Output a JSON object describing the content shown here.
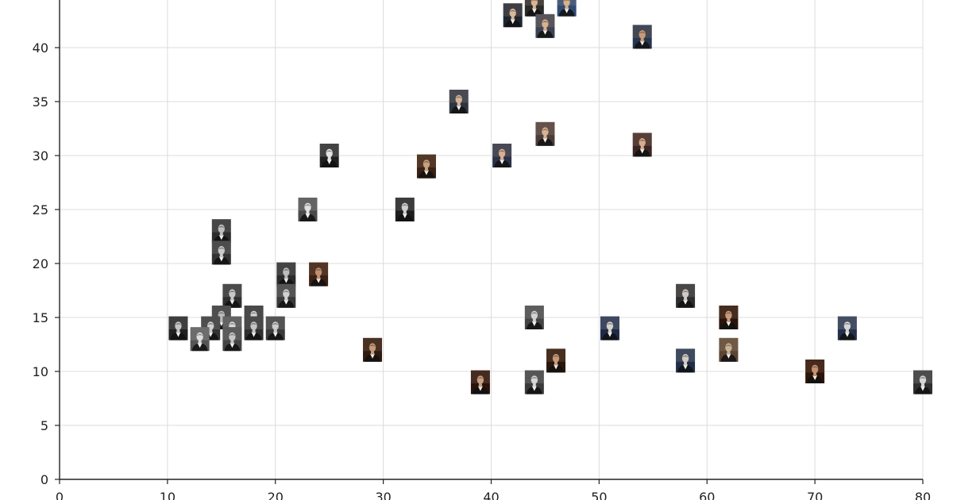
{
  "chart_data": {
    "type": "scatter",
    "title": "",
    "xlabel": "",
    "ylabel": "",
    "xlim": [
      0,
      80
    ],
    "ylim": [
      0,
      45
    ],
    "grid": true,
    "x_ticks": [
      {
        "value": 0,
        "label": "0"
      },
      {
        "value": 10,
        "label": "10"
      },
      {
        "value": 20,
        "label": "20"
      },
      {
        "value": 30,
        "label": "30"
      },
      {
        "value": 40,
        "label": "40"
      },
      {
        "value": 50,
        "label": "50"
      },
      {
        "value": 60,
        "label": "60"
      },
      {
        "value": 70,
        "label": "70"
      },
      {
        "value": 80,
        "label": "80"
      }
    ],
    "y_ticks": [
      {
        "value": 0,
        "label": "0"
      },
      {
        "value": 5,
        "label": "5"
      },
      {
        "value": 10,
        "label": "10"
      },
      {
        "value": 15,
        "label": "15"
      },
      {
        "value": 20,
        "label": "20"
      },
      {
        "value": 25,
        "label": "25"
      },
      {
        "value": 30,
        "label": "30"
      },
      {
        "value": 35,
        "label": "35"
      },
      {
        "value": 40,
        "label": "40"
      }
    ],
    "marker": "portrait-photo-thumbnail",
    "points": [
      {
        "x": 42,
        "y": 43,
        "tone": "#1e2530",
        "face": "#d9b79a"
      },
      {
        "x": 44,
        "y": 44,
        "tone": "#2a2a2a",
        "face": "#d7b497"
      },
      {
        "x": 47,
        "y": 44,
        "tone": "#2f4b75",
        "face": "#d9b18f"
      },
      {
        "x": 45,
        "y": 42,
        "tone": "#3c4350",
        "face": "#d8b190"
      },
      {
        "x": 54,
        "y": 41,
        "tone": "#27364f",
        "face": "#c79a77"
      },
      {
        "x": 37,
        "y": 35,
        "tone": "#2c3542",
        "face": "#d4b49a"
      },
      {
        "x": 45,
        "y": 32,
        "tone": "#4a3c3a",
        "face": "#d7b394"
      },
      {
        "x": 54,
        "y": 31,
        "tone": "#3b2624",
        "face": "#d8ac8b"
      },
      {
        "x": 41,
        "y": 30,
        "tone": "#2a3348",
        "face": "#d6b092"
      },
      {
        "x": 34,
        "y": 29,
        "tone": "#3a2115",
        "face": "#c9a07d"
      },
      {
        "x": 25,
        "y": 30,
        "tone": "#202020",
        "face": "#e4e4e4"
      },
      {
        "x": 23,
        "y": 25,
        "tone": "#4a4a4a",
        "face": "#e0e0e0"
      },
      {
        "x": 32,
        "y": 25,
        "tone": "#1d1d1d",
        "face": "#cfcfcf"
      },
      {
        "x": 15,
        "y": 23,
        "tone": "#2c2c2c",
        "face": "#bdbdbd"
      },
      {
        "x": 15,
        "y": 21,
        "tone": "#333333",
        "face": "#cacaca"
      },
      {
        "x": 21,
        "y": 19,
        "tone": "#2a2a2a",
        "face": "#bdbdbd"
      },
      {
        "x": 21,
        "y": 17,
        "tone": "#3a3a3a",
        "face": "#d0d0d0"
      },
      {
        "x": 24,
        "y": 19,
        "tone": "#3a2114",
        "face": "#c28f6e"
      },
      {
        "x": 16,
        "y": 17,
        "tone": "#303030",
        "face": "#c8c8c8"
      },
      {
        "x": 15,
        "y": 15,
        "tone": "#383838",
        "face": "#bcbcbc"
      },
      {
        "x": 18,
        "y": 15,
        "tone": "#2b2b2b",
        "face": "#d2d2d2"
      },
      {
        "x": 11,
        "y": 14,
        "tone": "#202020",
        "face": "#c6c6c6"
      },
      {
        "x": 14,
        "y": 14,
        "tone": "#333333",
        "face": "#cfcfcf"
      },
      {
        "x": 16,
        "y": 14,
        "tone": "#4a4a4a",
        "face": "#dadada"
      },
      {
        "x": 18,
        "y": 14,
        "tone": "#2f2f2f",
        "face": "#c4c4c4"
      },
      {
        "x": 20,
        "y": 14,
        "tone": "#3a3a3a",
        "face": "#cdcdcd"
      },
      {
        "x": 13,
        "y": 13,
        "tone": "#555555",
        "face": "#dddddd"
      },
      {
        "x": 16,
        "y": 13,
        "tone": "#444444",
        "face": "#c7c7c7"
      },
      {
        "x": 29,
        "y": 12,
        "tone": "#2e1a10",
        "face": "#c69a78"
      },
      {
        "x": 39,
        "y": 9,
        "tone": "#2a130a",
        "face": "#caa083"
      },
      {
        "x": 44,
        "y": 15,
        "tone": "#444444",
        "face": "#d3d3d3"
      },
      {
        "x": 44,
        "y": 9,
        "tone": "#3a3a3a",
        "face": "#d6d6d6"
      },
      {
        "x": 46,
        "y": 11,
        "tone": "#2b160c",
        "face": "#c79b7a"
      },
      {
        "x": 51,
        "y": 14,
        "tone": "#1e2a48",
        "face": "#d7d2cc"
      },
      {
        "x": 58,
        "y": 17,
        "tone": "#2d2d2d",
        "face": "#cfcac4"
      },
      {
        "x": 58,
        "y": 11,
        "tone": "#1f2e4a",
        "face": "#d3cbc2"
      },
      {
        "x": 62,
        "y": 15,
        "tone": "#2a140b",
        "face": "#c9997a"
      },
      {
        "x": 62,
        "y": 12,
        "tone": "#5a4634",
        "face": "#cbb296"
      },
      {
        "x": 70,
        "y": 10,
        "tone": "#2d1409",
        "face": "#c39271"
      },
      {
        "x": 73,
        "y": 14,
        "tone": "#24304a",
        "face": "#d6d6d6"
      },
      {
        "x": 80,
        "y": 9,
        "tone": "#2f2f2f",
        "face": "#d7d7d7"
      }
    ]
  }
}
